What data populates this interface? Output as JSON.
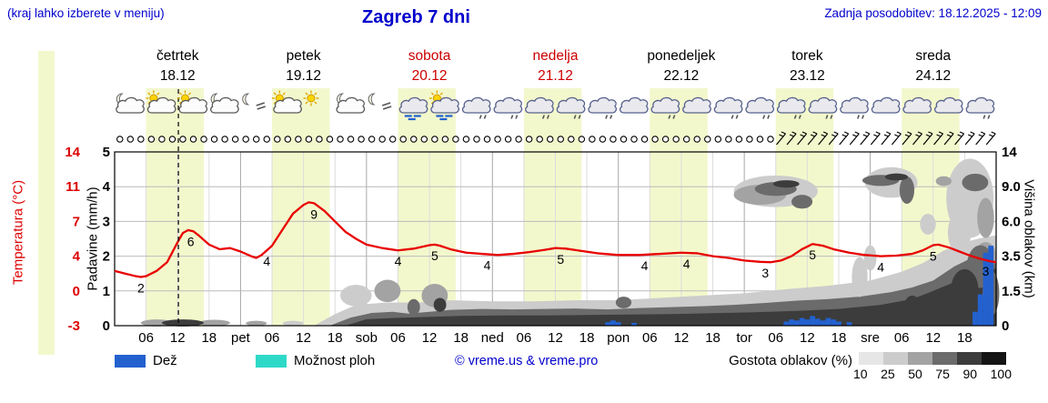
{
  "header": {
    "hint": "(kraj lahko izberete v meniju)",
    "title": "Zagreb 7 dni",
    "updated": "Zadnja posodobitev: 18.12.2025 - 12:09"
  },
  "colors": {
    "accent_blue": "#0000cc",
    "temp_red": "#dd0000",
    "temp_line": "#e80000",
    "rain_blue": "#2361cf",
    "showers_cyan": "#2fd9c8",
    "day_band": "#f3f8cc",
    "weekend_red": "#cc0000"
  },
  "days": [
    {
      "name": "četrtek",
      "date": "18.12",
      "highlight": false
    },
    {
      "name": "petek",
      "date": "19.12",
      "highlight": false
    },
    {
      "name": "sobota",
      "date": "20.12",
      "highlight": true
    },
    {
      "name": "nedelja",
      "date": "21.12",
      "highlight": true
    },
    {
      "name": "ponedeljek",
      "date": "22.12",
      "highlight": false
    },
    {
      "name": "torek",
      "date": "23.12",
      "highlight": false
    },
    {
      "name": "sreda",
      "date": "24.12",
      "highlight": false
    }
  ],
  "axes": {
    "temp_label": "Temperatura (°C)",
    "precip_label": "Padavine (mm/h)",
    "cloud_label": "Višina oblakov (km)",
    "temp_ticks": [
      "14",
      "11",
      "7",
      "4",
      "0",
      "-3"
    ],
    "precip_ticks": [
      "5",
      "4",
      "3",
      "2",
      "1",
      "0"
    ],
    "cloud_ticks": [
      "14",
      "9.0",
      "6.0",
      "3.5",
      "1.5",
      "0"
    ],
    "x_ticks": [
      [
        6,
        "06"
      ],
      [
        12,
        "12"
      ],
      [
        18,
        "18"
      ],
      [
        24,
        "pet"
      ],
      [
        30,
        "06"
      ],
      [
        36,
        "12"
      ],
      [
        42,
        "18"
      ],
      [
        48,
        "sob"
      ],
      [
        54,
        "06"
      ],
      [
        60,
        "12"
      ],
      [
        66,
        "18"
      ],
      [
        72,
        "ned"
      ],
      [
        78,
        "06"
      ],
      [
        84,
        "12"
      ],
      [
        90,
        "18"
      ],
      [
        96,
        "pon"
      ],
      [
        102,
        "06"
      ],
      [
        108,
        "12"
      ],
      [
        114,
        "18"
      ],
      [
        120,
        "tor"
      ],
      [
        126,
        "06"
      ],
      [
        132,
        "12"
      ],
      [
        138,
        "18"
      ],
      [
        144,
        "sre"
      ],
      [
        150,
        "06"
      ],
      [
        156,
        "12"
      ],
      [
        162,
        "18"
      ]
    ]
  },
  "legend": {
    "rain": "Dež",
    "showers": "Možnost ploh",
    "copyright": "© vreme.us & vreme.pro",
    "cloud_density": "Gostota oblakov (%)",
    "density_scale": [
      "10",
      "25",
      "50",
      "75",
      "90",
      "100"
    ]
  },
  "chart_data": {
    "type": "line",
    "title": "Zagreb 7 dni",
    "x_unit": "hours from 18.12. 00:00, 7 days",
    "x_range_hours": [
      0,
      168
    ],
    "now_hour": 12.15,
    "daytime_band_hours": [
      6,
      17
    ],
    "precip_axis_mm_h": [
      0,
      5
    ],
    "temp_axis_c": [
      -3,
      14
    ],
    "cloud_height_axis_km": [
      0,
      14
    ],
    "temperature_c": {
      "points": [
        [
          0,
          2.3
        ],
        [
          2,
          2.0
        ],
        [
          4,
          1.7
        ],
        [
          5,
          1.6
        ],
        [
          6,
          1.7
        ],
        [
          8,
          2.3
        ],
        [
          10,
          3.3
        ],
        [
          12,
          5.2
        ],
        [
          13,
          6.0
        ],
        [
          14,
          6.25
        ],
        [
          15,
          6.15
        ],
        [
          16,
          5.8
        ],
        [
          18,
          5.0
        ],
        [
          20,
          4.6
        ],
        [
          22,
          4.7
        ],
        [
          24,
          4.4
        ],
        [
          26,
          4.0
        ],
        [
          27,
          3.8
        ],
        [
          28,
          4.1
        ],
        [
          30,
          4.9
        ],
        [
          32,
          6.3
        ],
        [
          34,
          7.9
        ],
        [
          36,
          8.9
        ],
        [
          37,
          9.2
        ],
        [
          38,
          9.1
        ],
        [
          40,
          8.2
        ],
        [
          42,
          7.0
        ],
        [
          44,
          6.1
        ],
        [
          46,
          5.5
        ],
        [
          48,
          5.0
        ],
        [
          51,
          4.7
        ],
        [
          54,
          4.5
        ],
        [
          57,
          4.65
        ],
        [
          60,
          4.95
        ],
        [
          61,
          5.0
        ],
        [
          62,
          4.9
        ],
        [
          64,
          4.6
        ],
        [
          67,
          4.3
        ],
        [
          70,
          4.2
        ],
        [
          73,
          4.1
        ],
        [
          76,
          4.2
        ],
        [
          79,
          4.35
        ],
        [
          82,
          4.55
        ],
        [
          84,
          4.7
        ],
        [
          86,
          4.65
        ],
        [
          89,
          4.45
        ],
        [
          92,
          4.25
        ],
        [
          96,
          4.1
        ],
        [
          100,
          4.1
        ],
        [
          104,
          4.2
        ],
        [
          108,
          4.3
        ],
        [
          111,
          4.25
        ],
        [
          114,
          4.0
        ],
        [
          117,
          3.8
        ],
        [
          120,
          3.5
        ],
        [
          123,
          3.35
        ],
        [
          125,
          3.3
        ],
        [
          127,
          3.5
        ],
        [
          129,
          4.0
        ],
        [
          131,
          4.6
        ],
        [
          133,
          5.05
        ],
        [
          135,
          4.9
        ],
        [
          137,
          4.6
        ],
        [
          140,
          4.3
        ],
        [
          143,
          4.1
        ],
        [
          146,
          4.0
        ],
        [
          149,
          4.05
        ],
        [
          152,
          4.2
        ],
        [
          154,
          4.5
        ],
        [
          156,
          4.95
        ],
        [
          157,
          5.0
        ],
        [
          159,
          4.75
        ],
        [
          161,
          4.4
        ],
        [
          163,
          4.05
        ],
        [
          165,
          3.7
        ],
        [
          167,
          3.4
        ],
        [
          168,
          3.3
        ]
      ],
      "point_labels": [
        [
          5,
          "2"
        ],
        [
          14.5,
          "6"
        ],
        [
          29,
          "4"
        ],
        [
          38,
          "9"
        ],
        [
          54,
          "4"
        ],
        [
          61,
          "5"
        ],
        [
          71,
          "4"
        ],
        [
          85,
          "5"
        ],
        [
          101,
          "4"
        ],
        [
          109,
          "4"
        ],
        [
          124,
          "3"
        ],
        [
          133,
          "5"
        ],
        [
          146,
          "4"
        ],
        [
          156,
          "5"
        ],
        [
          166,
          "3"
        ]
      ]
    },
    "rain_mm_h": [
      [
        94,
        0.1
      ],
      [
        95,
        0.15
      ],
      [
        96,
        0.1
      ],
      [
        99,
        0.08
      ],
      [
        128,
        0.12
      ],
      [
        129,
        0.18
      ],
      [
        130,
        0.15
      ],
      [
        131,
        0.22
      ],
      [
        132,
        0.18
      ],
      [
        133,
        0.28
      ],
      [
        134,
        0.2
      ],
      [
        135,
        0.15
      ],
      [
        136,
        0.22
      ],
      [
        137,
        0.18
      ],
      [
        138,
        0.12
      ],
      [
        140,
        0.1
      ],
      [
        164,
        0.4
      ],
      [
        165,
        0.9
      ],
      [
        166,
        2.1
      ],
      [
        167,
        2.3
      ]
    ],
    "cloud_density": {
      "halo_25_top_km": [
        [
          38,
          0
        ],
        [
          42,
          0.5
        ],
        [
          46,
          0.9
        ],
        [
          52,
          1.0
        ],
        [
          58,
          1.0
        ],
        [
          64,
          1.1
        ],
        [
          72,
          1.05
        ],
        [
          80,
          1.05
        ],
        [
          88,
          1.1
        ],
        [
          96,
          1.1
        ],
        [
          104,
          1.2
        ],
        [
          112,
          1.3
        ],
        [
          120,
          1.4
        ],
        [
          128,
          1.6
        ],
        [
          136,
          1.8
        ],
        [
          144,
          2.1
        ],
        [
          150,
          2.6
        ],
        [
          154,
          3.1
        ],
        [
          158,
          3.9
        ],
        [
          162,
          4.5
        ],
        [
          165,
          4.8
        ],
        [
          168,
          5.0
        ]
      ],
      "band_75_top_km": [
        [
          41,
          0
        ],
        [
          45,
          0.35
        ],
        [
          49,
          0.55
        ],
        [
          53,
          0.6
        ],
        [
          56,
          0.52
        ],
        [
          60,
          0.6
        ],
        [
          64,
          0.68
        ],
        [
          70,
          0.72
        ],
        [
          76,
          0.7
        ],
        [
          82,
          0.72
        ],
        [
          88,
          0.74
        ],
        [
          94,
          0.7
        ],
        [
          100,
          0.76
        ],
        [
          106,
          0.8
        ],
        [
          112,
          0.84
        ],
        [
          118,
          0.9
        ],
        [
          124,
          0.98
        ],
        [
          130,
          1.08
        ],
        [
          136,
          1.15
        ],
        [
          142,
          1.25
        ],
        [
          148,
          1.45
        ],
        [
          152,
          1.7
        ],
        [
          156,
          2.1
        ],
        [
          160,
          2.9
        ],
        [
          164,
          3.5
        ],
        [
          168,
          3.8
        ]
      ],
      "core_90_top_km": [
        [
          44,
          0
        ],
        [
          48,
          0.28
        ],
        [
          54,
          0.34
        ],
        [
          60,
          0.38
        ],
        [
          66,
          0.42
        ],
        [
          74,
          0.44
        ],
        [
          82,
          0.44
        ],
        [
          90,
          0.46
        ],
        [
          98,
          0.48
        ],
        [
          106,
          0.5
        ],
        [
          114,
          0.54
        ],
        [
          122,
          0.58
        ],
        [
          130,
          0.64
        ],
        [
          138,
          0.72
        ],
        [
          146,
          0.9
        ],
        [
          152,
          1.15
        ],
        [
          156,
          1.5
        ],
        [
          160,
          2.0
        ],
        [
          164,
          2.5
        ],
        [
          168,
          2.8
        ]
      ],
      "ellipses_h_km_rh_rkm_density": [
        [
          8,
          0.12,
          3,
          0.18,
          50
        ],
        [
          13,
          0.12,
          4,
          0.18,
          90
        ],
        [
          19,
          0.12,
          3,
          0.15,
          50
        ],
        [
          27,
          0.1,
          2,
          0.12,
          50
        ],
        [
          34,
          0.1,
          2,
          0.12,
          25
        ],
        [
          46,
          1.3,
          3,
          0.5,
          25
        ],
        [
          52,
          1.5,
          2.5,
          0.55,
          50
        ],
        [
          57,
          0.8,
          1.2,
          0.35,
          75
        ],
        [
          61,
          1.3,
          2.5,
          0.55,
          50
        ],
        [
          62,
          0.9,
          1.2,
          0.3,
          90
        ],
        [
          97,
          1.0,
          1.5,
          0.25,
          75
        ],
        [
          142,
          2.3,
          1.5,
          1.1,
          25
        ],
        [
          144,
          3.4,
          1.2,
          0.8,
          25
        ],
        [
          126,
          8.6,
          8,
          1.6,
          25
        ],
        [
          123,
          8.3,
          5,
          0.9,
          50
        ],
        [
          126,
          8.8,
          4,
          0.7,
          75
        ],
        [
          128,
          9.4,
          2.5,
          0.5,
          90
        ],
        [
          131,
          7.7,
          2,
          0.6,
          75
        ],
        [
          148,
          9.6,
          5,
          1.8,
          25
        ],
        [
          146,
          9.9,
          3.5,
          0.8,
          75
        ],
        [
          149,
          10.4,
          2.2,
          0.5,
          90
        ],
        [
          151,
          8.7,
          1.4,
          1.4,
          75
        ],
        [
          152,
          0.9,
          1.4,
          0.4,
          90
        ],
        [
          155,
          5.8,
          1.5,
          0.8,
          25
        ],
        [
          158,
          9.8,
          1.5,
          0.7,
          50
        ],
        [
          163,
          8.0,
          4.5,
          3.8,
          25
        ],
        [
          161,
          5.2,
          2.2,
          1.6,
          25
        ],
        [
          164,
          9.6,
          2.5,
          1.1,
          75
        ],
        [
          166,
          6.3,
          1.6,
          1.6,
          50
        ],
        [
          165,
          2.9,
          2.6,
          1.3,
          75
        ],
        [
          162,
          1.6,
          2.6,
          1.0,
          90
        ],
        [
          167,
          1.4,
          1.6,
          1.1,
          75
        ],
        [
          166,
          3.5,
          2.0,
          0.9,
          50
        ]
      ],
      "density_colors": {
        "10": "#e6e6e6",
        "25": "#cccccc",
        "50": "#a3a3a3",
        "75": "#6b6b6b",
        "90": "#3c3c3c",
        "100": "#141414"
      }
    },
    "wind_row": {
      "step_hours": 2,
      "first_hour": 1,
      "barbs_from_hour": 127,
      "calm_symbol": "circle",
      "wind_symbol": "barb"
    },
    "weather_icons_6h": [
      "cloud-moon",
      "sun-cloud",
      "sun-cloud",
      "moon-cloud",
      "fog-moon",
      "sun-cloud",
      "sun",
      "moon-cloud",
      "fog-moon",
      "rain",
      "sun-rain",
      "drizzle",
      "drizzle",
      "drizzle",
      "drizzle",
      "drizzle",
      "cloud",
      "drizzle",
      "cloud",
      "drizzle",
      "drizzle",
      "drizzle",
      "drizzle",
      "drizzle",
      "cloud",
      "cloud",
      "cloud",
      "drizzle"
    ]
  }
}
